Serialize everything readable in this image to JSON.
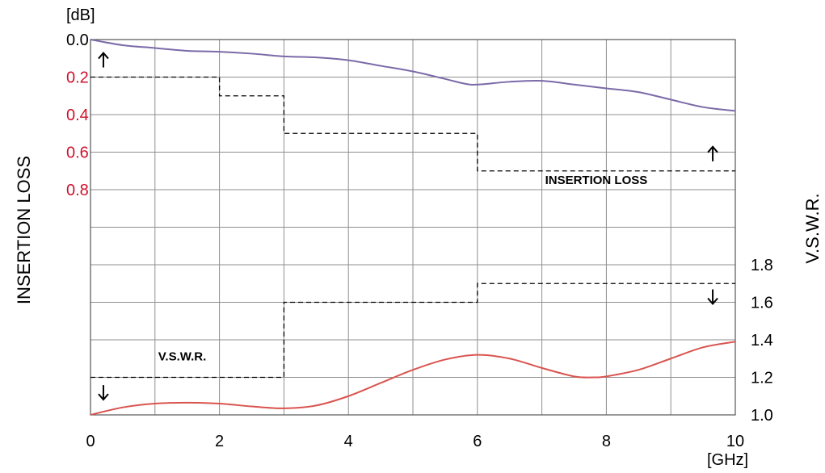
{
  "chart_data": {
    "type": "line",
    "x_unit": "[GHz]",
    "x_range": [
      0,
      10
    ],
    "x_ticks": [
      "0",
      "2",
      "4",
      "6",
      "8",
      "10"
    ],
    "grid": true,
    "left_axis": {
      "title": "INSERTION LOSS",
      "unit": "[dB]",
      "ticks": [
        {
          "label": "0.0",
          "value": 0.0,
          "color": "#000000"
        },
        {
          "label": "0.2",
          "value": 0.2,
          "color": "#d0112b"
        },
        {
          "label": "0.4",
          "value": 0.4,
          "color": "#d0112b"
        },
        {
          "label": "0.6",
          "value": 0.6,
          "color": "#d0112b"
        },
        {
          "label": "0.8",
          "value": 0.8,
          "color": "#d0112b"
        }
      ]
    },
    "right_axis": {
      "title": "V.S.W.R.",
      "ticks": [
        "1.0",
        "1.2",
        "1.4",
        "1.6",
        "1.8"
      ]
    },
    "series": [
      {
        "name": "INSERTION LOSS",
        "color": "#7b6aa8",
        "axis": "left",
        "x": [
          0,
          0.5,
          1,
          1.5,
          2,
          2.5,
          3,
          3.5,
          4,
          4.5,
          5,
          5.5,
          5.8,
          6,
          6.5,
          7,
          7.5,
          8,
          8.5,
          9,
          9.5,
          10
        ],
        "y": [
          0.0,
          0.03,
          0.045,
          0.06,
          0.065,
          0.075,
          0.09,
          0.095,
          0.11,
          0.14,
          0.17,
          0.21,
          0.235,
          0.24,
          0.225,
          0.22,
          0.24,
          0.26,
          0.28,
          0.32,
          0.36,
          0.38
        ]
      },
      {
        "name": "V.S.W.R.",
        "color": "#d9544f",
        "axis": "right",
        "x": [
          0,
          0.5,
          1,
          1.5,
          2,
          2.5,
          3,
          3.5,
          4,
          4.5,
          5,
          5.5,
          6,
          6.5,
          7,
          7.5,
          7.8,
          8,
          8.5,
          9,
          9.5,
          10
        ],
        "y": [
          1.0,
          1.04,
          1.06,
          1.065,
          1.06,
          1.045,
          1.035,
          1.05,
          1.1,
          1.17,
          1.24,
          1.295,
          1.32,
          1.3,
          1.25,
          1.205,
          1.2,
          1.205,
          1.24,
          1.3,
          1.36,
          1.39
        ]
      }
    ],
    "limits": [
      {
        "name": "INSERTION LOSS",
        "axis": "left",
        "steps": [
          {
            "x0": 0,
            "x1": 2,
            "y": 0.2
          },
          {
            "x0": 2,
            "x1": 3,
            "y": 0.3
          },
          {
            "x0": 3,
            "x1": 6,
            "y": 0.5
          },
          {
            "x0": 6,
            "x1": 10,
            "y": 0.7
          }
        ]
      },
      {
        "name": "V.S.W.R.",
        "axis": "right",
        "steps": [
          {
            "x0": 0,
            "x1": 3,
            "y": 1.2
          },
          {
            "x0": 3,
            "x1": 6,
            "y": 1.6
          },
          {
            "x0": 6,
            "x1": 10,
            "y": 1.7
          }
        ]
      }
    ],
    "annotations": [
      {
        "text": "INSERTION LOSS",
        "x": 7.05,
        "axis": "left",
        "y": 0.77
      },
      {
        "text": "V.S.W.R.",
        "x": 1.05,
        "axis": "right",
        "y": 1.29
      }
    ],
    "arrows": [
      {
        "axis": "left",
        "x": 0.2,
        "y": 0.11,
        "direction": "up"
      },
      {
        "axis": "left",
        "x": 9.65,
        "y": 0.61,
        "direction": "up"
      },
      {
        "axis": "right",
        "x": 9.65,
        "y": 1.63,
        "direction": "down"
      },
      {
        "axis": "right",
        "x": 0.2,
        "y": 1.12,
        "direction": "down"
      }
    ]
  }
}
